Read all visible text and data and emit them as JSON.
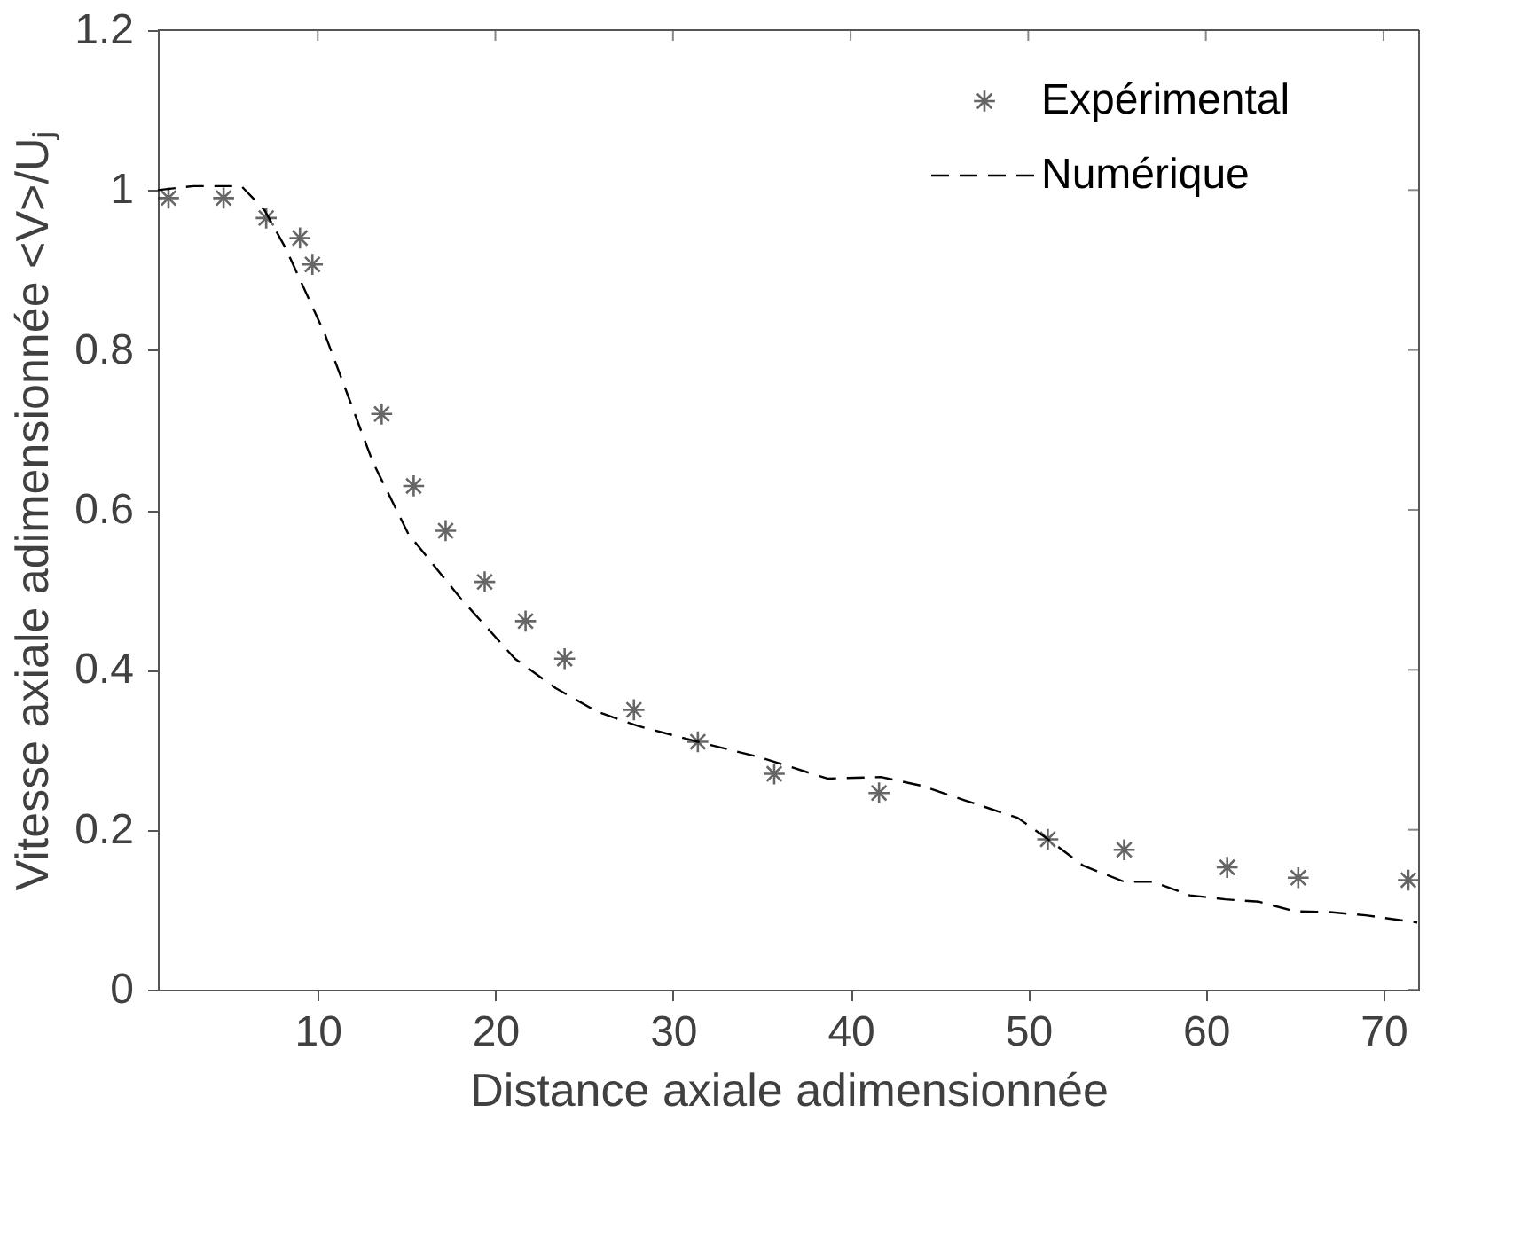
{
  "chart_data": {
    "type": "scatter",
    "xlabel": "Distance axiale adimensionnée",
    "ylabel": "Vitesse axiale adimensionnée <V>/Uⱼ",
    "xlim": [
      1,
      72
    ],
    "ylim": [
      0,
      1.2
    ],
    "xticks": [
      10,
      20,
      30,
      40,
      50,
      60,
      70
    ],
    "yticks": [
      0,
      0.2,
      0.4,
      0.6,
      0.8,
      1,
      1.2
    ],
    "grid": false,
    "legend": "top right",
    "series": [
      {
        "name": "Expérimental",
        "marker": "cross",
        "color": "#262626",
        "x": [
          1.6,
          4.7,
          7.1,
          9.0,
          9.7,
          13.6,
          15.4,
          17.2,
          19.4,
          21.7,
          23.9,
          27.8,
          31.4,
          35.7,
          41.6,
          51.1,
          55.4,
          61.2,
          65.2,
          71.4
        ],
        "values": [
          0.99,
          0.99,
          0.965,
          0.94,
          0.907,
          0.72,
          0.63,
          0.574,
          0.51,
          0.461,
          0.414,
          0.35,
          0.31,
          0.27,
          0.246,
          0.188,
          0.175,
          0.153,
          0.14,
          0.137
        ]
      },
      {
        "name": "Numérique",
        "type": "line",
        "line_style": "dashed",
        "marker": "none",
        "color": "#000000",
        "x": [
          1,
          3,
          5.7,
          7,
          8.2,
          10.4,
          13.1,
          15.1,
          18.1,
          21.1,
          23.4,
          25.7,
          28,
          31.4,
          35,
          38.7,
          41.7,
          44,
          46.4,
          49.4,
          51,
          53.1,
          55.4,
          57,
          59.1,
          61.1,
          63,
          65,
          67,
          69,
          71.9
        ],
        "values": [
          1.0,
          1.005,
          1.005,
          0.975,
          0.927,
          0.82,
          0.66,
          0.57,
          0.488,
          0.414,
          0.377,
          0.348,
          0.33,
          0.31,
          0.29,
          0.264,
          0.266,
          0.255,
          0.237,
          0.215,
          0.19,
          0.155,
          0.135,
          0.135,
          0.118,
          0.113,
          0.11,
          0.098,
          0.097,
          0.093,
          0.084
        ]
      }
    ]
  }
}
